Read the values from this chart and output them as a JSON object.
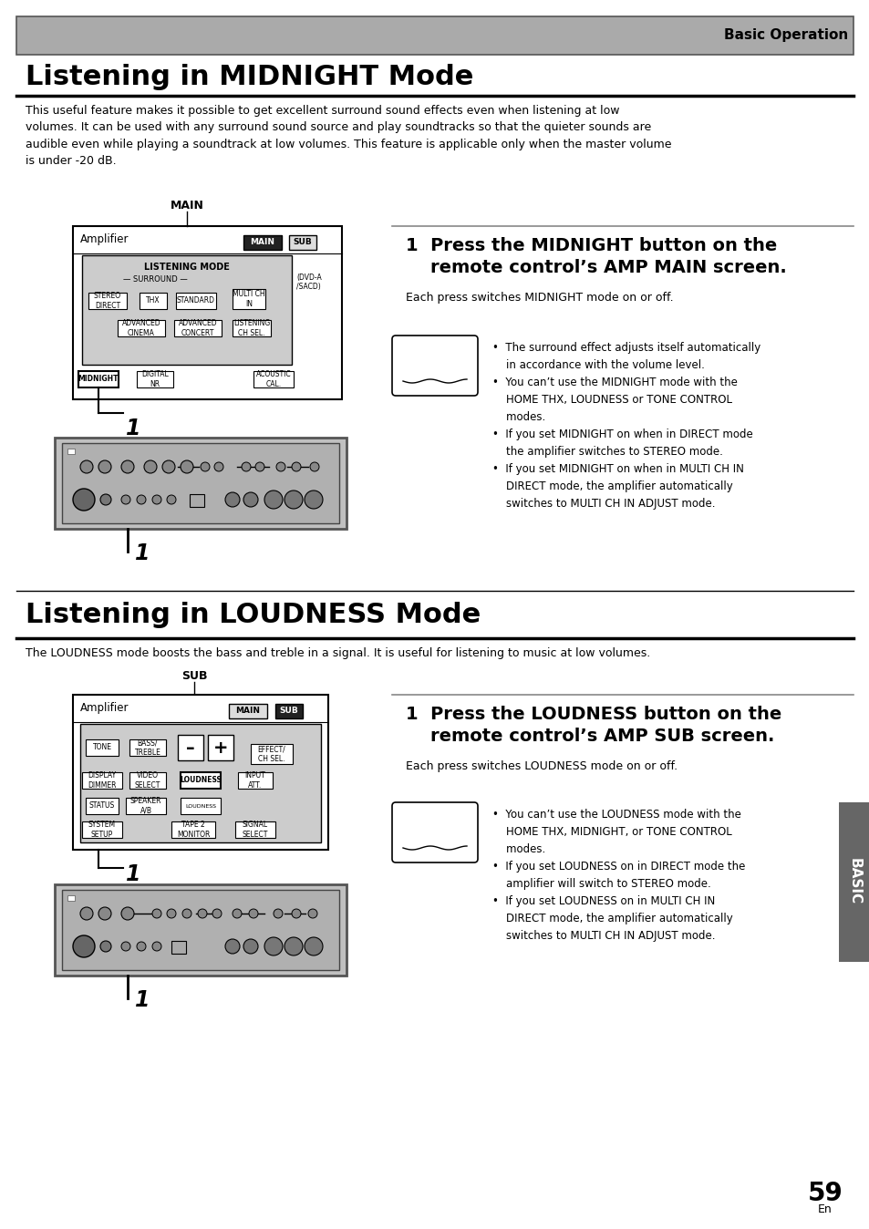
{
  "page_bg": "#ffffff",
  "header_bg": "#aaaaaa",
  "header_text": "Basic Operation",
  "title1": "Listening in MIDNIGHT Mode",
  "title2": "Listening in LOUDNESS Mode",
  "body_text1": "This useful feature makes it possible to get excellent surround sound effects even when listening at low\nvolumes. It can be used with any surround sound source and play soundtracks so that the quieter sounds are\naudible even while playing a soundtrack at low volumes. This feature is applicable only when the master volume\nis under -20 dB.",
  "body_text2": "The LOUDNESS mode boosts the bass and treble in a signal. It is useful for listening to music at low volumes.",
  "step1_midnight_line1": "1  Press the MIDNIGHT button on the",
  "step1_midnight_line2": "    remote control’s AMP MAIN screen.",
  "step1_sub_midnight": "Each press switches MIDNIGHT mode on or off.",
  "step1_loudness_line1": "1  Press the LOUDNESS button on the",
  "step1_loudness_line2": "    remote control’s AMP SUB screen.",
  "step1_sub_loudness": "Each press switches LOUDNESS mode on or off.",
  "memo_text_midnight": "•  The surround effect adjusts itself automatically\n    in accordance with the volume level.\n•  You can’t use the MIDNIGHT mode with the\n    HOME THX, LOUDNESS or TONE CONTROL\n    modes.\n•  If you set MIDNIGHT on when in DIRECT mode\n    the amplifier switches to STEREO mode.\n•  If you set MIDNIGHT on when in MULTI CH IN\n    DIRECT mode, the amplifier automatically\n    switches to MULTI CH IN ADJUST mode.",
  "memo_text_loudness": "•  You can’t use the LOUDNESS mode with the\n    HOME THX, MIDNIGHT, or TONE CONTROL\n    modes.\n•  If you set LOUDNESS on in DIRECT mode the\n    amplifier will switch to STEREO mode.\n•  If you set LOUDNESS on in MULTI CH IN\n    DIRECT mode, the amplifier automatically\n    switches to MULTI CH IN ADJUST mode.",
  "page_number": "59",
  "sidebar_text": "BASIC",
  "sidebar_bg": "#666666",
  "diagram_bg": "#cccccc",
  "receiver_bg": "#c0c0c0",
  "receiver_inner": "#b0b0b0"
}
